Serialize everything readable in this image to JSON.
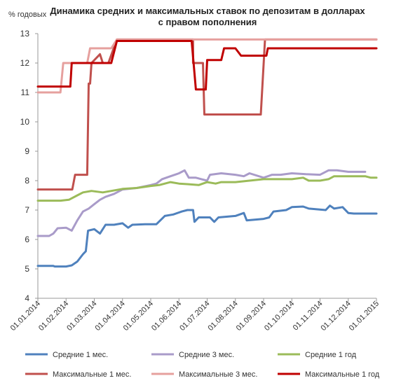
{
  "chart_data": {
    "type": "line",
    "title": [
      "Динамика средних и максимальных ставок по депозитам в долларах",
      "с правом пополнения"
    ],
    "ylabel": "% годовых",
    "xlabel": "",
    "ylim": [
      4,
      13
    ],
    "yticks": [
      "4",
      "5",
      "6",
      "7",
      "8",
      "9",
      "10",
      "11",
      "12",
      "13"
    ],
    "grid": false,
    "legend_position": "bottom",
    "categories": [
      "01.01.2014",
      "01.02.2014",
      "01.03.2014",
      "01.04.2014",
      "01.05.2014",
      "01.06.2014",
      "01.07.2014",
      "01.08.2014",
      "01.09.2014",
      "01.10.2014",
      "01.11.2014",
      "01.12.2014",
      "01.01.2015"
    ],
    "series": [
      {
        "name": "Средние 1 мес.",
        "color": "#4f81bd",
        "points": [
          [
            0,
            5.1
          ],
          [
            0.55,
            5.1
          ],
          [
            0.6,
            5.08
          ],
          [
            1.0,
            5.08
          ],
          [
            1.2,
            5.12
          ],
          [
            1.4,
            5.25
          ],
          [
            1.6,
            5.5
          ],
          [
            1.7,
            5.6
          ],
          [
            1.78,
            6.3
          ],
          [
            2.0,
            6.35
          ],
          [
            2.2,
            6.2
          ],
          [
            2.4,
            6.5
          ],
          [
            2.7,
            6.5
          ],
          [
            3.0,
            6.55
          ],
          [
            3.2,
            6.4
          ],
          [
            3.35,
            6.5
          ],
          [
            3.8,
            6.52
          ],
          [
            4.2,
            6.52
          ],
          [
            4.5,
            6.8
          ],
          [
            4.8,
            6.85
          ],
          [
            5.1,
            6.95
          ],
          [
            5.3,
            7.0
          ],
          [
            5.5,
            7.0
          ],
          [
            5.55,
            6.6
          ],
          [
            5.7,
            6.75
          ],
          [
            6.1,
            6.75
          ],
          [
            6.25,
            6.6
          ],
          [
            6.4,
            6.75
          ],
          [
            7.0,
            6.8
          ],
          [
            7.3,
            6.9
          ],
          [
            7.4,
            6.65
          ],
          [
            8.0,
            6.7
          ],
          [
            8.2,
            6.75
          ],
          [
            8.35,
            6.95
          ],
          [
            8.8,
            7.0
          ],
          [
            9.0,
            7.1
          ],
          [
            9.4,
            7.12
          ],
          [
            9.6,
            7.05
          ],
          [
            10.2,
            7.0
          ],
          [
            10.35,
            7.15
          ],
          [
            10.5,
            7.05
          ],
          [
            10.8,
            7.1
          ],
          [
            11.0,
            6.9
          ],
          [
            11.2,
            6.88
          ],
          [
            12.0,
            6.88
          ]
        ]
      },
      {
        "name": "Средние 3 мес.",
        "color": "#a99bc9",
        "points": [
          [
            0,
            6.12
          ],
          [
            0.4,
            6.12
          ],
          [
            0.55,
            6.2
          ],
          [
            0.7,
            6.38
          ],
          [
            1.0,
            6.4
          ],
          [
            1.2,
            6.3
          ],
          [
            1.4,
            6.65
          ],
          [
            1.6,
            6.95
          ],
          [
            1.8,
            7.05
          ],
          [
            2.0,
            7.2
          ],
          [
            2.2,
            7.35
          ],
          [
            2.4,
            7.45
          ],
          [
            2.7,
            7.55
          ],
          [
            3.0,
            7.7
          ],
          [
            3.5,
            7.75
          ],
          [
            4.0,
            7.85
          ],
          [
            4.2,
            7.9
          ],
          [
            4.4,
            8.05
          ],
          [
            4.7,
            8.15
          ],
          [
            5.0,
            8.25
          ],
          [
            5.2,
            8.35
          ],
          [
            5.35,
            8.1
          ],
          [
            5.6,
            8.1
          ],
          [
            5.8,
            8.05
          ],
          [
            6.0,
            8.0
          ],
          [
            6.1,
            8.2
          ],
          [
            6.5,
            8.25
          ],
          [
            7.0,
            8.2
          ],
          [
            7.3,
            8.15
          ],
          [
            7.5,
            8.25
          ],
          [
            8.0,
            8.1
          ],
          [
            8.3,
            8.2
          ],
          [
            8.6,
            8.2
          ],
          [
            9.0,
            8.25
          ],
          [
            9.5,
            8.22
          ],
          [
            10.0,
            8.2
          ],
          [
            10.3,
            8.35
          ],
          [
            10.6,
            8.35
          ],
          [
            11.0,
            8.3
          ],
          [
            11.6,
            8.3
          ]
        ]
      },
      {
        "name": "Средние 1 год",
        "color": "#9bbb59",
        "points": [
          [
            0,
            7.32
          ],
          [
            0.8,
            7.32
          ],
          [
            1.1,
            7.35
          ],
          [
            1.4,
            7.5
          ],
          [
            1.6,
            7.6
          ],
          [
            1.9,
            7.65
          ],
          [
            2.3,
            7.6
          ],
          [
            2.6,
            7.65
          ],
          [
            3.0,
            7.72
          ],
          [
            3.5,
            7.75
          ],
          [
            4.0,
            7.82
          ],
          [
            4.3,
            7.85
          ],
          [
            4.7,
            7.95
          ],
          [
            5.0,
            7.9
          ],
          [
            5.3,
            7.88
          ],
          [
            5.7,
            7.85
          ],
          [
            6.0,
            7.95
          ],
          [
            6.3,
            7.9
          ],
          [
            6.5,
            7.95
          ],
          [
            7.0,
            7.95
          ],
          [
            7.5,
            8.0
          ],
          [
            8.0,
            8.05
          ],
          [
            8.5,
            8.05
          ],
          [
            9.0,
            8.05
          ],
          [
            9.4,
            8.1
          ],
          [
            9.6,
            8.0
          ],
          [
            10.0,
            8.0
          ],
          [
            10.3,
            8.05
          ],
          [
            10.5,
            8.15
          ],
          [
            11.2,
            8.15
          ],
          [
            11.6,
            8.15
          ],
          [
            11.8,
            8.1
          ],
          [
            12.0,
            8.1
          ]
        ]
      },
      {
        "name": "Максимальные 1 мес.",
        "color": "#c0504d",
        "points": [
          [
            0,
            7.7
          ],
          [
            1.22,
            7.7
          ],
          [
            1.32,
            8.2
          ],
          [
            1.75,
            8.2
          ],
          [
            1.8,
            11.3
          ],
          [
            1.85,
            11.3
          ],
          [
            1.9,
            12.0
          ],
          [
            2.2,
            12.3
          ],
          [
            2.3,
            12.0
          ],
          [
            2.4,
            12.0
          ],
          [
            2.5,
            12.0
          ],
          [
            2.8,
            12.8
          ],
          [
            5.5,
            12.8
          ],
          [
            5.5,
            12.0
          ],
          [
            5.85,
            12.0
          ],
          [
            5.9,
            10.25
          ],
          [
            7.9,
            10.25
          ],
          [
            8.05,
            12.8
          ],
          [
            8.3,
            12.8
          ],
          [
            12.0,
            12.8
          ]
        ]
      },
      {
        "name": "Максимальные 3 мес.",
        "color": "#e6a09e",
        "points": [
          [
            0,
            11.0
          ],
          [
            0.8,
            11.0
          ],
          [
            0.9,
            12.0
          ],
          [
            1.75,
            12.0
          ],
          [
            1.85,
            12.5
          ],
          [
            2.6,
            12.5
          ],
          [
            2.8,
            12.8
          ],
          [
            8.3,
            12.8
          ],
          [
            12.0,
            12.8
          ]
        ]
      },
      {
        "name": "Максимальные 1 год",
        "color": "#c00000",
        "points": [
          [
            0,
            11.2
          ],
          [
            1.15,
            11.2
          ],
          [
            1.2,
            12.0
          ],
          [
            2.1,
            12.0
          ],
          [
            2.2,
            12.0
          ],
          [
            2.35,
            12.0
          ],
          [
            2.6,
            12.0
          ],
          [
            2.8,
            12.75
          ],
          [
            5.45,
            12.75
          ],
          [
            5.6,
            11.1
          ],
          [
            5.95,
            11.1
          ],
          [
            6.0,
            12.1
          ],
          [
            6.5,
            12.1
          ],
          [
            6.6,
            12.5
          ],
          [
            7.0,
            12.5
          ],
          [
            7.2,
            12.25
          ],
          [
            8.1,
            12.25
          ],
          [
            8.15,
            12.5
          ],
          [
            12.0,
            12.5
          ]
        ]
      }
    ]
  }
}
